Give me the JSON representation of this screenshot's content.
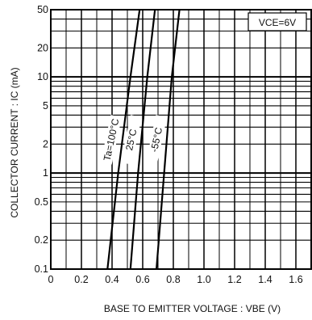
{
  "chart_data": {
    "type": "line",
    "xlabel": "BASE TO EMITTER VOLTAGE : VBE (V)",
    "ylabel": "COLLECTOR CURRENT : IC (mA)",
    "xlim": [
      0,
      1.7
    ],
    "ylim": [
      0.1,
      50
    ],
    "yscale": "log",
    "grid": true,
    "x_ticks": [
      "0",
      "0.2",
      "0.4",
      "0.6",
      "0.8",
      "1.0",
      "1.2",
      "1.4",
      "1.6"
    ],
    "y_ticks": [
      {
        "value": 0.1,
        "label": "0.1"
      },
      {
        "value": 0.2,
        "label": "0.2"
      },
      {
        "value": 0.5,
        "label": "0.5"
      },
      {
        "value": 1,
        "label": "1"
      },
      {
        "value": 2,
        "label": "2"
      },
      {
        "value": 5,
        "label": "5"
      },
      {
        "value": 10,
        "label": "10"
      },
      {
        "value": 20,
        "label": "20"
      },
      {
        "value": 50,
        "label": "50"
      }
    ],
    "annotation": "VCE=6V",
    "series": [
      {
        "name": "Ta=100°C",
        "x": [
          0.37,
          0.44,
          0.52,
          0.58
        ],
        "y": [
          0.1,
          1,
          10,
          50
        ]
      },
      {
        "name": "25°C",
        "x": [
          0.52,
          0.57,
          0.63,
          0.68
        ],
        "y": [
          0.1,
          1,
          10,
          50
        ]
      },
      {
        "name": "-55°C",
        "x": [
          0.69,
          0.74,
          0.79,
          0.84
        ],
        "y": [
          0.1,
          1,
          10,
          50
        ]
      }
    ]
  }
}
